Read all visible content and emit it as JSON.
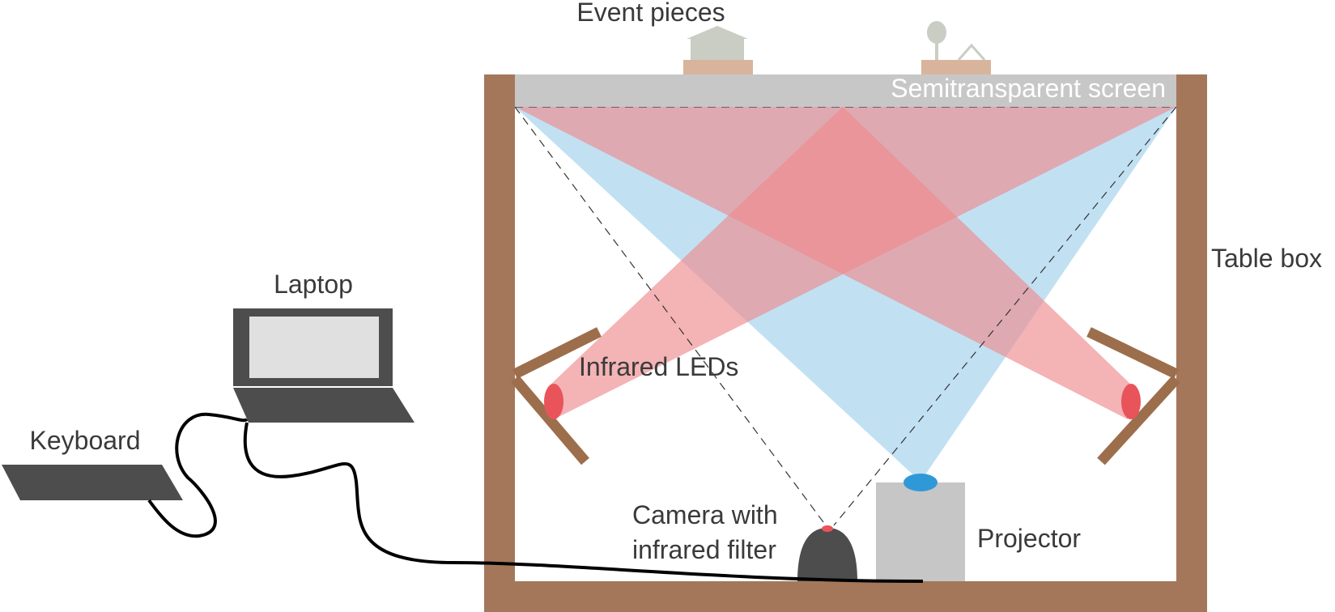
{
  "labels": {
    "event_pieces": "Event pieces",
    "semitransparent_screen": "Semitransparent screen",
    "table_box": "Table box",
    "laptop": "Laptop",
    "keyboard": "Keyboard",
    "infrared_leds": "Infrared LEDs",
    "camera_line1": "Camera with",
    "camera_line2": "infrared filter",
    "projector": "Projector"
  },
  "colors": {
    "wood": "#a4775a",
    "wood_mirror_mount": "#9c6e4c",
    "screen": "#c7c7c7",
    "infrared_led": "#e8545a",
    "infrared_beam": "#ee8a8e",
    "projector_beam": "#8ec9ea",
    "projector_lens": "#2f99d8",
    "projector_body": "#c6c6c6",
    "camera_body": "#4d4d4d",
    "laptop_body": "#4d4d4d",
    "laptop_screen": "#e0e0e0",
    "event_piece_base": "#d9b49c",
    "event_piece_top": "#c9cdc3",
    "cable": "#000000"
  }
}
